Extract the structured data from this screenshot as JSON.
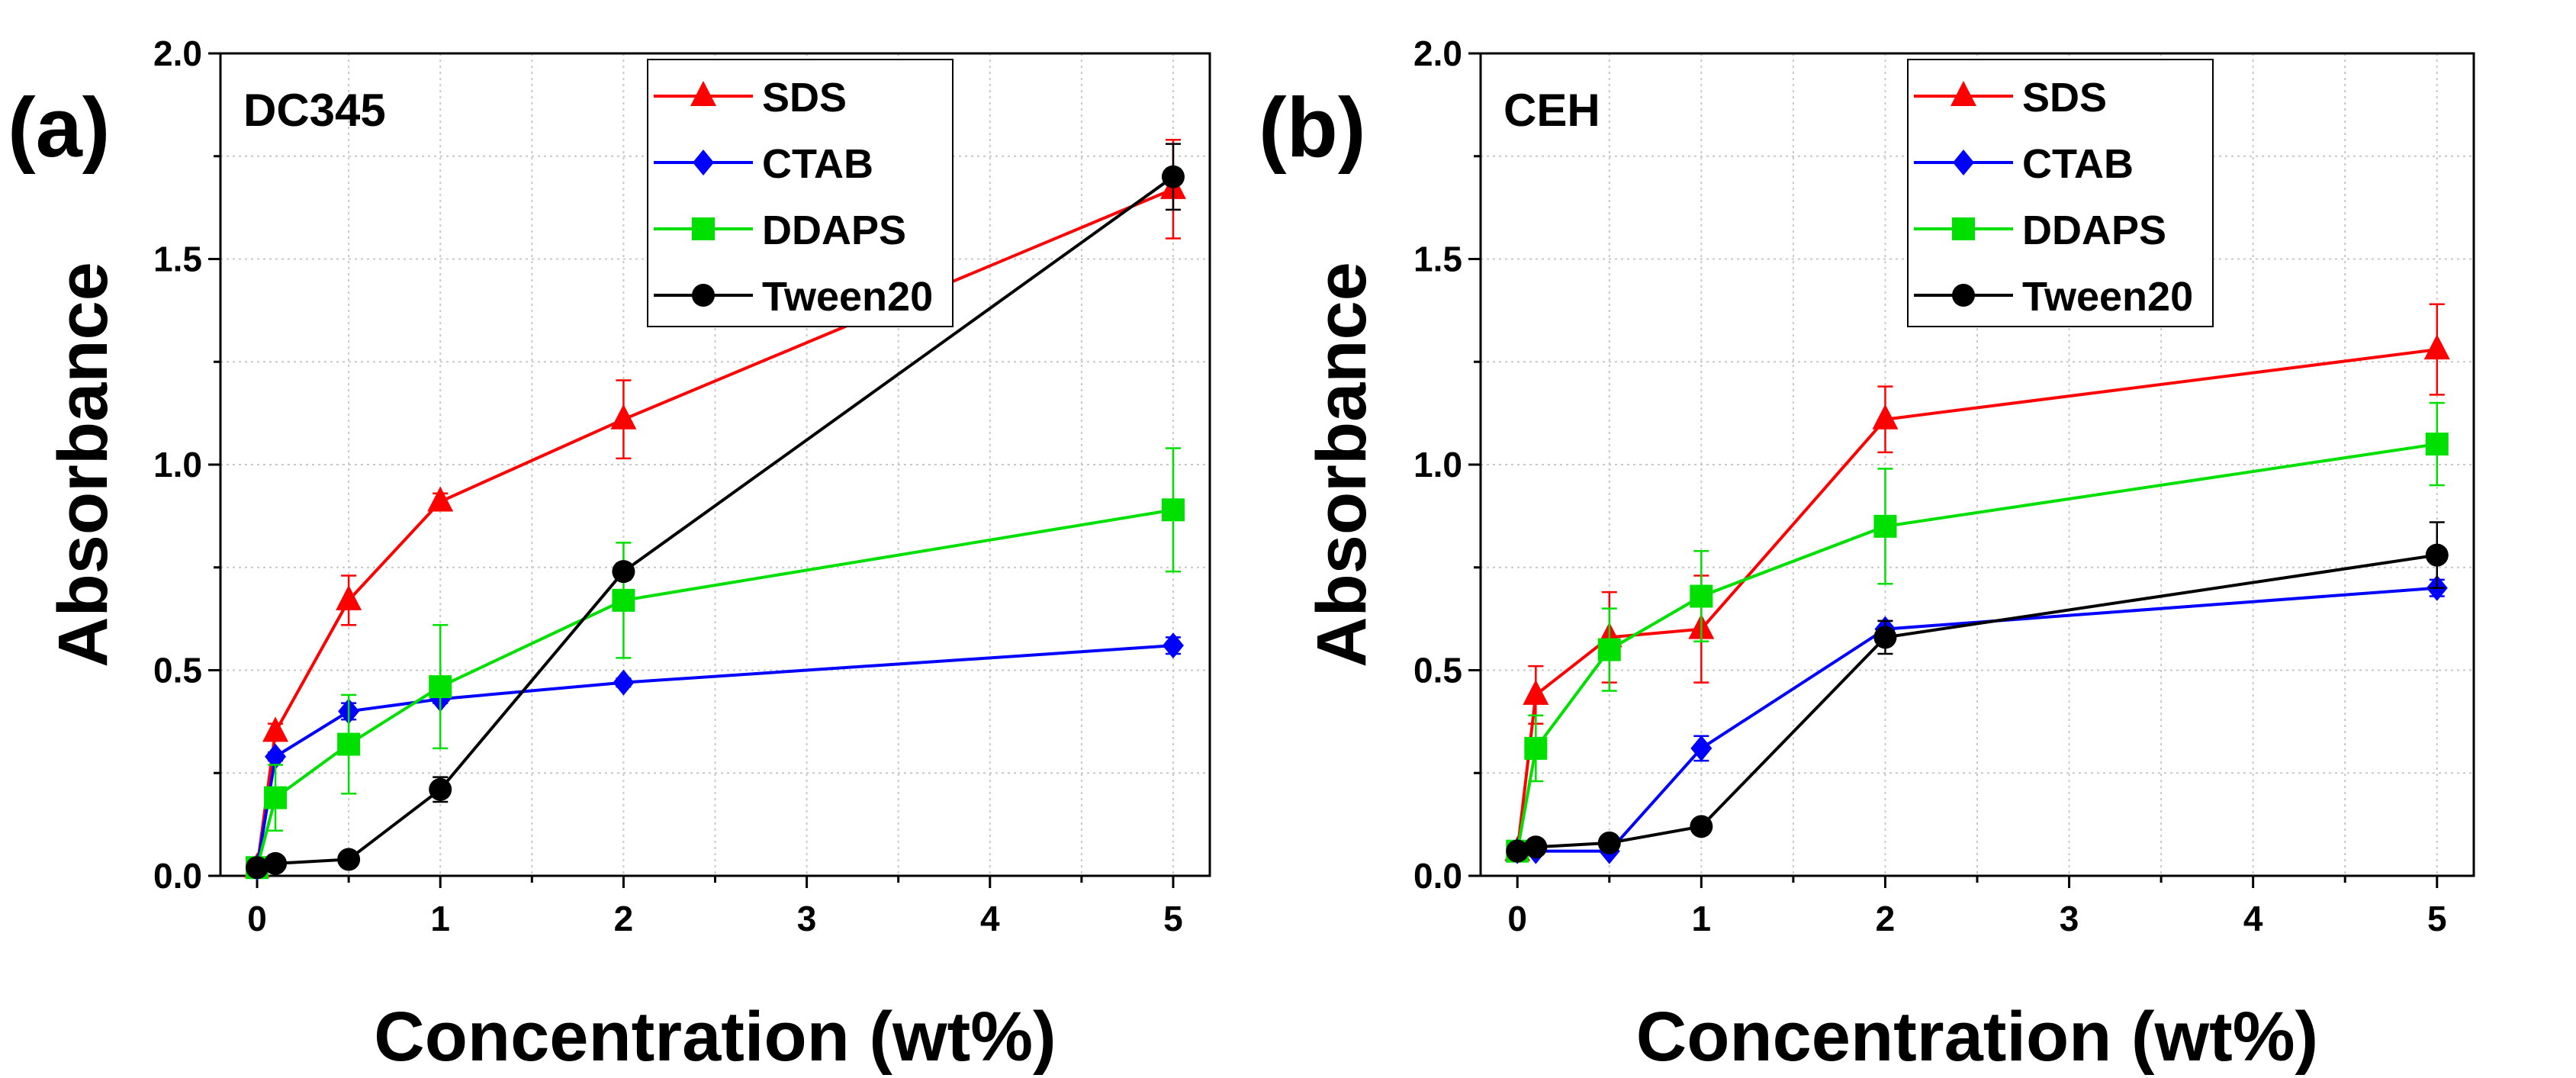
{
  "chart_data": [
    {
      "type": "line",
      "panel_label": "(a)",
      "title": "DC345",
      "xlabel": "Concentration (wt%)",
      "ylabel": "Absorbance",
      "xlim": [
        -0.2,
        5.2
      ],
      "ylim": [
        0,
        2.0
      ],
      "xticks": [
        "0",
        "1",
        "2",
        "3",
        "4",
        "5"
      ],
      "yticks": [
        "0.0",
        "0.5",
        "1.0",
        "1.5",
        "2.0"
      ],
      "grid": true,
      "legend_position": "top-center",
      "x": [
        0,
        0.1,
        0.5,
        1,
        2,
        5
      ],
      "series": [
        {
          "name": "SDS",
          "color": "#ff0000",
          "marker": "triangle",
          "values": [
            0.02,
            0.35,
            0.67,
            0.91,
            1.11,
            1.67
          ],
          "errors": [
            0,
            0.02,
            0.06,
            0.02,
            0.095,
            0.12
          ]
        },
        {
          "name": "CTAB",
          "color": "#0000ff",
          "marker": "diamond",
          "values": [
            0.02,
            0.29,
            0.4,
            0.43,
            0.47,
            0.56
          ],
          "errors": [
            0,
            0.01,
            0.02,
            0.01,
            0.01,
            0.02
          ]
        },
        {
          "name": "DDAPS",
          "color": "#00e000",
          "marker": "square",
          "values": [
            0.02,
            0.19,
            0.32,
            0.46,
            0.67,
            0.89
          ],
          "errors": [
            0,
            0.08,
            0.12,
            0.15,
            0.14,
            0.15
          ]
        },
        {
          "name": "Tween20",
          "color": "#000000",
          "marker": "circle",
          "values": [
            0.02,
            0.03,
            0.04,
            0.21,
            0.74,
            1.7
          ],
          "errors": [
            0,
            0.005,
            0.005,
            0.03,
            0.02,
            0.08
          ]
        }
      ]
    },
    {
      "type": "line",
      "panel_label": "(b)",
      "title": "CEH",
      "xlabel": "Concentration (wt%)",
      "ylabel": "Absorbance",
      "xlim": [
        -0.2,
        5.2
      ],
      "ylim": [
        0,
        2.0
      ],
      "xticks": [
        "0",
        "1",
        "2",
        "3",
        "4",
        "5"
      ],
      "yticks": [
        "0.0",
        "0.5",
        "1.0",
        "1.5",
        "2.0"
      ],
      "grid": true,
      "legend_position": "top-center",
      "x": [
        0,
        0.1,
        0.5,
        1,
        2,
        5
      ],
      "series": [
        {
          "name": "SDS",
          "color": "#ff0000",
          "marker": "triangle",
          "values": [
            0.06,
            0.44,
            0.58,
            0.6,
            1.11,
            1.28
          ],
          "errors": [
            0,
            0.07,
            0.11,
            0.13,
            0.08,
            0.11
          ]
        },
        {
          "name": "CTAB",
          "color": "#0000ff",
          "marker": "diamond",
          "values": [
            0.06,
            0.06,
            0.06,
            0.31,
            0.6,
            0.7
          ],
          "errors": [
            0,
            0.005,
            0.005,
            0.03,
            0.02,
            0.02
          ]
        },
        {
          "name": "DDAPS",
          "color": "#00e000",
          "marker": "square",
          "values": [
            0.06,
            0.31,
            0.55,
            0.68,
            0.85,
            1.05
          ],
          "errors": [
            0,
            0.08,
            0.1,
            0.11,
            0.14,
            0.1
          ]
        },
        {
          "name": "Tween20",
          "color": "#000000",
          "marker": "circle",
          "values": [
            0.06,
            0.07,
            0.08,
            0.12,
            0.58,
            0.78
          ],
          "errors": [
            0,
            0.005,
            0.005,
            0.005,
            0.04,
            0.08
          ]
        }
      ]
    }
  ]
}
